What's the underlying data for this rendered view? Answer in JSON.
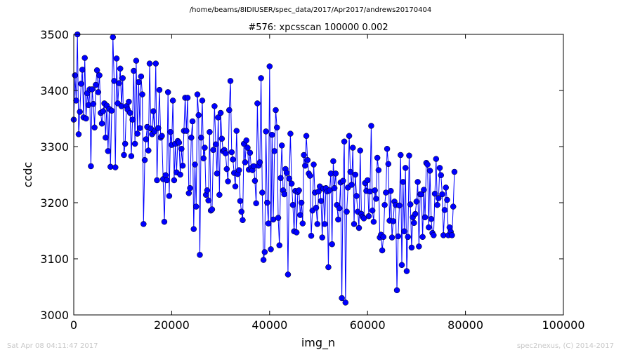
{
  "suptitle": "/home/beams/8IDIUSER/spec_data/2017/Apr2017/andrews20170404",
  "footer": {
    "timestamp": "Sat Apr 08 04:11:47 2017",
    "credit": "spec2nexus, (C) 2014-2017"
  },
  "chart_data": {
    "type": "line",
    "title": "#576: xpcsscan 100000 0.002",
    "xlabel": "img_n",
    "ylabel": "ccdc",
    "xlim": [
      0,
      100000
    ],
    "ylim": [
      3000,
      3500
    ],
    "xticks": [
      0,
      20000,
      40000,
      60000,
      80000,
      100000
    ],
    "yticks": [
      3000,
      3100,
      3200,
      3300,
      3400,
      3500
    ],
    "grid": false,
    "color": "#0000ff",
    "x_step": 250,
    "y": [
      3348,
      3427,
      3382,
      3500,
      3322,
      3362,
      3412,
      3437,
      3352,
      3458,
      3350,
      3395,
      3374,
      3402,
      3265,
      3402,
      3376,
      3334,
      3410,
      3436,
      3397,
      3427,
      3360,
      3341,
      3363,
      3377,
      3316,
      3373,
      3292,
      3367,
      3264,
      3364,
      3495,
      3417,
      3263,
      3457,
      3377,
      3413,
      3439,
      3372,
      3422,
      3285,
      3305,
      3372,
      3366,
      3380,
      3360,
      3283,
      3348,
      3435,
      3305,
      3453,
      3323,
      3415,
      3333,
      3425,
      3393,
      3162,
      3276,
      3313,
      3335,
      3293,
      3448,
      3332,
      3322,
      3363,
      3327,
      3448,
      3240,
      3333,
      3401,
      3316,
      3319,
      3242,
      3166,
      3249,
      3240,
      3397,
      3212,
      3326,
      3303,
      3382,
      3240,
      3305,
      3254,
      3310,
      3307,
      3250,
      3296,
      3266,
      3328,
      3387,
      3328,
      3387,
      3217,
      3226,
      3316,
      3345,
      3153,
      3268,
      3193,
      3393,
      3356,
      3107,
      3316,
      3382,
      3279,
      3298,
      3214,
      3222,
      3204,
      3326,
      3186,
      3188,
      3294,
      3372,
      3304,
      3252,
      3352,
      3214,
      3360,
      3314,
      3292,
      3294,
      3288,
      3260,
      3238,
      3365,
      3417,
      3290,
      3277,
      3253,
      3229,
      3328,
      3251,
      3258,
      3203,
      3184,
      3169,
      3305,
      3272,
      3311,
      3298,
      3259,
      3289,
      3262,
      3258,
      3265,
      3239,
      3199,
      3377,
      3266,
      3272,
      3422,
      3218,
      3098,
      3112,
      3327,
      3200,
      3163,
      3443,
      3117,
      3321,
      3170,
      3292,
      3365,
      3334,
      3173,
      3124,
      3244,
      3302,
      3222,
      3215,
      3260,
      3253,
      3072,
      3243,
      3323,
      3234,
      3196,
      3149,
      3221,
      3147,
      3219,
      3222,
      3178,
      3200,
      3163,
      3285,
      3266,
      3319,
      3276,
      3252,
      3248,
      3141,
      3186,
      3268,
      3218,
      3191,
      3162,
      3220,
      3229,
      3203,
      3138,
      3225,
      3162,
      3226,
      3220,
      3085,
      3222,
      3252,
      3126,
      3274,
      3226,
      3252,
      3196,
      3170,
      3190,
      3236,
      3030,
      3239,
      3309,
      3022,
      3184,
      3227,
      3319,
      3255,
      3232,
      3298,
      3162,
      3250,
      3212,
      3184,
      3155,
      3293,
      3180,
      3175,
      3172,
      3235,
      3221,
      3240,
      3176,
      3220,
      3337,
      3186,
      3166,
      3222,
      3207,
      3280,
      3258,
      3138,
      3143,
      3115,
      3139,
      3196,
      3218,
      3296,
      3269,
      3168,
      3221,
      3138,
      3167,
      3202,
      3196,
      3044,
      3140,
      3195,
      3285,
      3089,
      3237,
      3149,
      3262,
      3078,
      3139,
      3284,
      3197,
      3120,
      3174,
      3164,
      3180,
      3202,
      3237,
      3122,
      3215,
      3215,
      3139,
      3223,
      3174,
      3271,
      3268,
      3156,
      3257,
      3171,
      3146,
      3142,
      3216,
      3278,
      3196,
      3208,
      3262,
      3249,
      3215,
      3142,
      3187,
      3227,
      3205,
      3142,
      3156,
      3148,
      3142,
      3193,
      3255
    ]
  }
}
